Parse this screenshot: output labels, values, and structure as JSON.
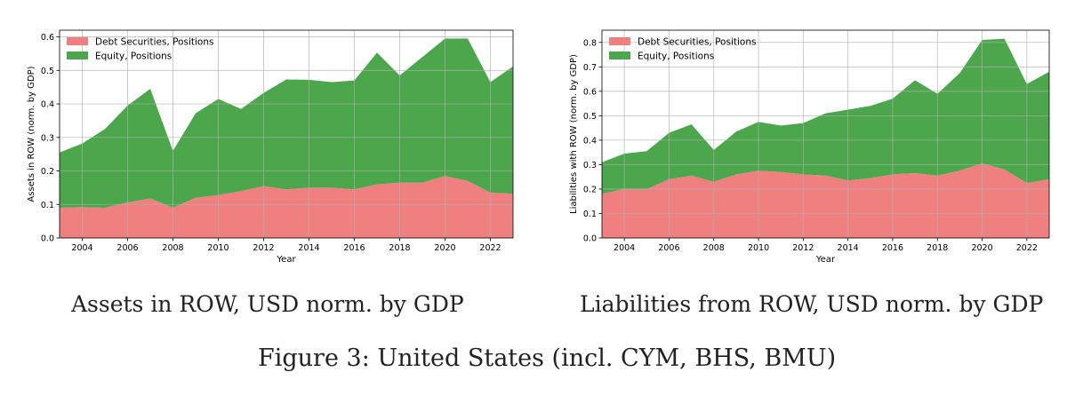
{
  "captions": {
    "left": "Assets in ROW, USD norm. by GDP",
    "right": "Liabilities from ROW, USD norm. by GDP",
    "figure": "Figure 3: United States (incl. CYM, BHS, BMU)"
  },
  "chart_data": [
    {
      "type": "area",
      "stacked": true,
      "title": "",
      "xlabel": "Year",
      "ylabel": "Assets in ROW (norm. by GDP)",
      "xlim": [
        2003,
        2023
      ],
      "ylim": [
        0,
        0.62
      ],
      "xticks": [
        2004,
        2006,
        2008,
        2010,
        2012,
        2014,
        2016,
        2018,
        2020,
        2022
      ],
      "yticks": [
        0.0,
        0.1,
        0.2,
        0.3,
        0.4,
        0.5,
        0.6
      ],
      "grid": true,
      "legend_position": "top-left",
      "x": [
        2003,
        2004,
        2005,
        2006,
        2007,
        2008,
        2009,
        2010,
        2011,
        2012,
        2013,
        2014,
        2015,
        2016,
        2017,
        2018,
        2019,
        2020,
        2021,
        2022,
        2023
      ],
      "series": [
        {
          "name": "Debt Securities, Positions",
          "color": "#f08080",
          "values": [
            0.09,
            0.092,
            0.09,
            0.106,
            0.118,
            0.09,
            0.12,
            0.128,
            0.14,
            0.155,
            0.145,
            0.15,
            0.15,
            0.145,
            0.16,
            0.165,
            0.165,
            0.185,
            0.17,
            0.135,
            0.132
          ]
        },
        {
          "name": "Equity, Positions",
          "color": "#4ca64c",
          "values": [
            0.165,
            0.19,
            0.235,
            0.289,
            0.327,
            0.17,
            0.252,
            0.287,
            0.245,
            0.278,
            0.328,
            0.322,
            0.315,
            0.325,
            0.393,
            0.32,
            0.375,
            0.41,
            0.425,
            0.33,
            0.38
          ]
        }
      ]
    },
    {
      "type": "area",
      "stacked": true,
      "title": "",
      "xlabel": "Year",
      "ylabel": "Liabilities with ROW (norm. by GDP)",
      "xlim": [
        2003,
        2023
      ],
      "ylim": [
        0,
        0.85
      ],
      "xticks": [
        2004,
        2006,
        2008,
        2010,
        2012,
        2014,
        2016,
        2018,
        2020,
        2022
      ],
      "yticks": [
        0.0,
        0.1,
        0.2,
        0.3,
        0.4,
        0.5,
        0.6,
        0.7,
        0.8
      ],
      "grid": true,
      "legend_position": "top-left",
      "x": [
        2003,
        2004,
        2005,
        2006,
        2007,
        2008,
        2009,
        2010,
        2011,
        2012,
        2013,
        2014,
        2015,
        2016,
        2017,
        2018,
        2019,
        2020,
        2021,
        2022,
        2023
      ],
      "series": [
        {
          "name": "Debt Securities, Positions",
          "color": "#f08080",
          "values": [
            0.18,
            0.2,
            0.2,
            0.24,
            0.255,
            0.23,
            0.26,
            0.275,
            0.27,
            0.26,
            0.255,
            0.235,
            0.245,
            0.26,
            0.265,
            0.255,
            0.275,
            0.305,
            0.28,
            0.225,
            0.24
          ]
        },
        {
          "name": "Equity, Positions",
          "color": "#4ca64c",
          "values": [
            0.13,
            0.145,
            0.155,
            0.19,
            0.21,
            0.13,
            0.175,
            0.2,
            0.19,
            0.21,
            0.255,
            0.29,
            0.295,
            0.31,
            0.38,
            0.335,
            0.4,
            0.505,
            0.535,
            0.405,
            0.44
          ]
        }
      ]
    }
  ]
}
